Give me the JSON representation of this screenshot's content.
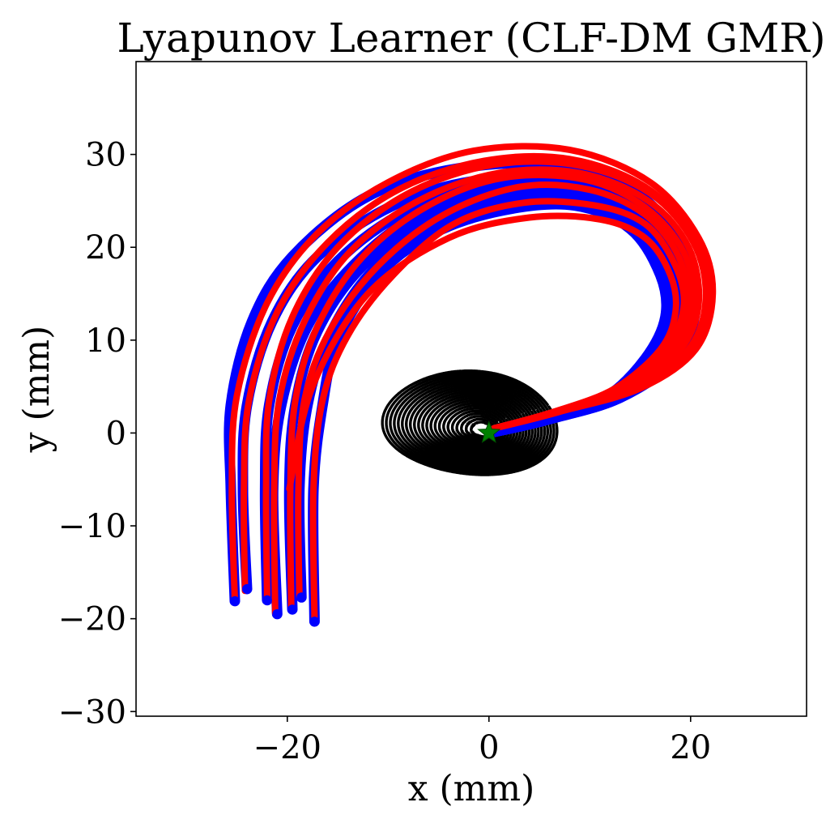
{
  "chart_data": {
    "type": "line",
    "title": "Lyapunov Learner (CLF-DM GMR)",
    "xlabel": "x (mm)",
    "ylabel": "y (mm)",
    "xlim": [
      -35,
      31.5
    ],
    "ylim": [
      -30.5,
      40
    ],
    "xticks": [
      -20,
      0,
      20
    ],
    "yticks": [
      -30,
      -20,
      -10,
      0,
      10,
      20,
      30
    ],
    "xtick_labels": [
      "−20",
      "0",
      "20"
    ],
    "ytick_labels": [
      "−30",
      "−20",
      "−10",
      "0",
      "10",
      "20",
      "30"
    ],
    "grid": false,
    "target": {
      "x": 0,
      "y": 0,
      "marker": "star",
      "color": "#008000"
    },
    "contours": {
      "color": "#000000",
      "center": [
        0,
        0
      ],
      "levels": [
        0.6,
        1.2,
        2,
        3,
        4.2,
        5.6,
        7.2,
        9,
        11,
        13.2,
        15.6,
        18.2,
        21,
        24,
        27.2,
        30.6,
        34.2,
        38,
        42,
        46.2,
        50.6,
        55.2
      ]
    },
    "series": [
      {
        "role": "demonstrations",
        "color": "#0000ff",
        "lines": [
          [
            [
              -25.2,
              -18.1
            ],
            [
              -25.6,
              -6
            ],
            [
              -25.6,
              3
            ],
            [
              -23.5,
              12
            ],
            [
              -19.5,
              19
            ],
            [
              -12,
              25.5
            ],
            [
              -3,
              28.5
            ],
            [
              7,
              28.8
            ],
            [
              15,
              25.5
            ],
            [
              19,
              20
            ],
            [
              20.5,
              14
            ],
            [
              18.5,
              8
            ],
            [
              13,
              3.8
            ],
            [
              6,
              1.5
            ],
            [
              0,
              0
            ]
          ],
          [
            [
              -24,
              -16.8
            ],
            [
              -24.4,
              -6
            ],
            [
              -24,
              3
            ],
            [
              -21.5,
              12
            ],
            [
              -17,
              19
            ],
            [
              -9.5,
              24.5
            ],
            [
              -1,
              27.2
            ],
            [
              8,
              27
            ],
            [
              15.5,
              24
            ],
            [
              19.3,
              19
            ],
            [
              20.5,
              13.5
            ],
            [
              18.5,
              8
            ],
            [
              13,
              3.8
            ],
            [
              6,
              1.5
            ],
            [
              0,
              0
            ]
          ],
          [
            [
              -22,
              -18
            ],
            [
              -22.2,
              -6
            ],
            [
              -21.8,
              3
            ],
            [
              -19.5,
              11.5
            ],
            [
              -15,
              18.5
            ],
            [
              -8,
              24
            ],
            [
              0,
              26.7
            ],
            [
              8,
              26.5
            ],
            [
              15,
              23.5
            ],
            [
              18.5,
              18.5
            ],
            [
              19.5,
              13.5
            ],
            [
              17.5,
              8
            ],
            [
              12.5,
              3.8
            ],
            [
              6,
              1.5
            ],
            [
              0,
              0
            ]
          ],
          [
            [
              -21,
              -19.5
            ],
            [
              -21.4,
              -6
            ],
            [
              -20.6,
              3
            ],
            [
              -18,
              11.5
            ],
            [
              -13.5,
              18
            ],
            [
              -7,
              23.5
            ],
            [
              0.5,
              26
            ],
            [
              8.5,
              25.8
            ],
            [
              15,
              23
            ],
            [
              18.3,
              18
            ],
            [
              19,
              13
            ],
            [
              17,
              8
            ],
            [
              12.5,
              3.8
            ],
            [
              6,
              1.5
            ],
            [
              0,
              0
            ]
          ],
          [
            [
              -19.5,
              -19
            ],
            [
              -19.8,
              -6
            ],
            [
              -19.2,
              3
            ],
            [
              -17,
              11
            ],
            [
              -12.5,
              18
            ],
            [
              -6,
              23
            ],
            [
              1.5,
              25.5
            ],
            [
              9,
              25.2
            ],
            [
              15,
              22.5
            ],
            [
              18,
              17.5
            ],
            [
              18.5,
              12.5
            ],
            [
              16.5,
              8
            ],
            [
              12,
              3.8
            ],
            [
              6,
              1.5
            ],
            [
              0,
              0
            ]
          ],
          [
            [
              -18.6,
              -17.7
            ],
            [
              -18.8,
              -6
            ],
            [
              -18,
              3
            ],
            [
              -15.8,
              10.5
            ],
            [
              -11.5,
              17.5
            ],
            [
              -5.5,
              22.3
            ],
            [
              1.5,
              24.8
            ],
            [
              9,
              24.5
            ],
            [
              14.8,
              22
            ],
            [
              17.5,
              17
            ],
            [
              18,
              12.5
            ],
            [
              16,
              8
            ],
            [
              12,
              3.8
            ],
            [
              6,
              1.5
            ],
            [
              0,
              0
            ]
          ],
          [
            [
              -17.3,
              -20.3
            ],
            [
              -17.4,
              -6
            ],
            [
              -16.5,
              3
            ],
            [
              -15,
              10
            ],
            [
              -11,
              17
            ],
            [
              -5.5,
              21.5
            ],
            [
              1.5,
              24
            ],
            [
              8.5,
              24.5
            ],
            [
              14,
              22
            ],
            [
              17,
              17
            ],
            [
              17.5,
              12.5
            ],
            [
              15.5,
              8
            ],
            [
              11.5,
              3.8
            ],
            [
              5.5,
              1.5
            ],
            [
              0,
              0
            ]
          ]
        ]
      },
      {
        "role": "reproductions",
        "color": "#ff0000",
        "lines": [
          [
            [
              -25.2,
              -18.1
            ],
            [
              -25.5,
              -6
            ],
            [
              -25,
              4
            ],
            [
              -22,
              14
            ],
            [
              -17,
              21.5
            ],
            [
              -10,
              27
            ],
            [
              -1.5,
              30.4
            ],
            [
              8,
              30.5
            ],
            [
              16,
              27
            ],
            [
              20.8,
              21
            ],
            [
              22.2,
              15
            ],
            [
              20.5,
              9
            ],
            [
              15,
              4.8
            ],
            [
              7,
              2.3
            ],
            [
              0.5,
              0.5
            ]
          ],
          [
            [
              -24.2,
              -17
            ],
            [
              -24.3,
              -6
            ],
            [
              -23.8,
              3.5
            ],
            [
              -21,
              13
            ],
            [
              -16,
              20.5
            ],
            [
              -9,
              26.2
            ],
            [
              -0.5,
              29.3
            ],
            [
              8,
              29.5
            ],
            [
              15.5,
              26.5
            ],
            [
              20.3,
              21
            ],
            [
              21.8,
              15
            ],
            [
              20,
              9
            ],
            [
              14.5,
              4.8
            ],
            [
              7,
              2.3
            ],
            [
              0.5,
              0.5
            ]
          ],
          [
            [
              -22,
              -18
            ],
            [
              -22.1,
              -6
            ],
            [
              -21.8,
              3.5
            ],
            [
              -19.5,
              12.5
            ],
            [
              -15,
              20
            ],
            [
              -8,
              25.8
            ],
            [
              0.5,
              28.9
            ],
            [
              9,
              28.8
            ],
            [
              16,
              25.8
            ],
            [
              20.3,
              20.5
            ],
            [
              21.5,
              14.5
            ],
            [
              19.8,
              9
            ],
            [
              14.5,
              4.8
            ],
            [
              7,
              2.3
            ],
            [
              0.5,
              0.5
            ]
          ],
          [
            [
              -21.2,
              -19.4
            ],
            [
              -21.3,
              -6
            ],
            [
              -20.8,
              3.5
            ],
            [
              -18.3,
              12
            ],
            [
              -13.8,
              19.5
            ],
            [
              -7,
              25
            ],
            [
              1,
              28
            ],
            [
              9,
              28
            ],
            [
              15.8,
              25
            ],
            [
              19.8,
              20
            ],
            [
              20.8,
              14
            ],
            [
              19,
              9
            ],
            [
              14,
              4.8
            ],
            [
              7,
              2.3
            ],
            [
              0.5,
              0.5
            ]
          ],
          [
            [
              -19.6,
              -19
            ],
            [
              -19.7,
              -6
            ],
            [
              -19.2,
              3.5
            ],
            [
              -17,
              11.5
            ],
            [
              -12.5,
              19
            ],
            [
              -6,
              24.5
            ],
            [
              1.5,
              27.5
            ],
            [
              9.5,
              27.3
            ],
            [
              15.5,
              24.3
            ],
            [
              19.3,
              19.5
            ],
            [
              20.2,
              14
            ],
            [
              18.5,
              9
            ],
            [
              13.8,
              4.8
            ],
            [
              7,
              2.3
            ],
            [
              0.5,
              0.5
            ]
          ],
          [
            [
              -18.8,
              -17.6
            ],
            [
              -18.9,
              -6
            ],
            [
              -18.3,
              3.5
            ],
            [
              -15.8,
              11
            ],
            [
              -11,
              18
            ],
            [
              -4.5,
              23.5
            ],
            [
              3,
              26.5
            ],
            [
              10,
              26.2
            ],
            [
              15.5,
              23.5
            ],
            [
              18.8,
              19
            ],
            [
              19.6,
              14
            ],
            [
              18,
              9
            ],
            [
              13.5,
              4.8
            ],
            [
              7,
              2.3
            ],
            [
              0.5,
              0.5
            ]
          ],
          [
            [
              -17.3,
              -20.2
            ],
            [
              -17.4,
              -6
            ],
            [
              -16.5,
              3.5
            ],
            [
              -14,
              10.5
            ],
            [
              -9.5,
              17
            ],
            [
              -3.5,
              22.5
            ],
            [
              3.5,
              24.8
            ],
            [
              10.5,
              24.5
            ],
            [
              15.5,
              22.5
            ],
            [
              18.5,
              18
            ],
            [
              19.3,
              13.5
            ],
            [
              17.5,
              9
            ],
            [
              13,
              4.8
            ],
            [
              6.5,
              2.3
            ],
            [
              0.5,
              0.5
            ]
          ],
          [
            [
              -19.8,
              -6
            ],
            [
              -17.5,
              5
            ],
            [
              -12,
              15
            ],
            [
              -4,
              21
            ],
            [
              4,
              23.2
            ],
            [
              11,
              23
            ],
            [
              15.5,
              21
            ],
            [
              18,
              17
            ],
            [
              18.5,
              13
            ],
            [
              17,
              9
            ],
            [
              12.5,
              4.8
            ],
            [
              6.5,
              2.3
            ],
            [
              0.5,
              0.5
            ]
          ]
        ]
      }
    ]
  }
}
